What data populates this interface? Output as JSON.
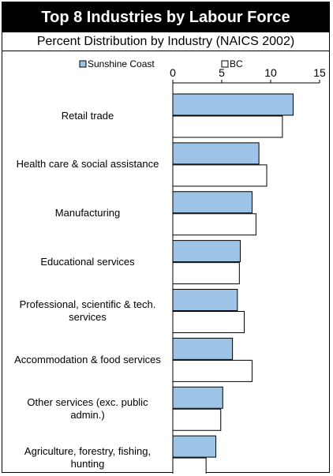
{
  "chart_data": {
    "type": "bar",
    "orientation": "horizontal",
    "title": "Top 8 Industries by Labour Force",
    "subtitle": "Percent Distribution by Industry (NAICS 2002)",
    "categories": [
      "Retail trade",
      "Health care & social assistance",
      "Manufacturing",
      "Educational services",
      "Professional, scientific & tech. services",
      "Accommodation & food services",
      "Other services (exc. public admin.)",
      "Agriculture, forestry, fishing, hunting"
    ],
    "series": [
      {
        "name": "Sunshine Coast",
        "color": "#9dc3e6",
        "values": [
          12.3,
          8.8,
          8.1,
          6.9,
          6.6,
          6.1,
          5.1,
          4.4
        ]
      },
      {
        "name": "BC",
        "color": "#ffffff",
        "values": [
          11.2,
          9.6,
          8.5,
          6.8,
          7.3,
          8.1,
          4.9,
          3.4
        ]
      }
    ],
    "xlim": [
      0,
      15
    ],
    "xticks": [
      "0",
      "5",
      "10",
      "15"
    ],
    "grid": false,
    "legend": "top-left"
  }
}
